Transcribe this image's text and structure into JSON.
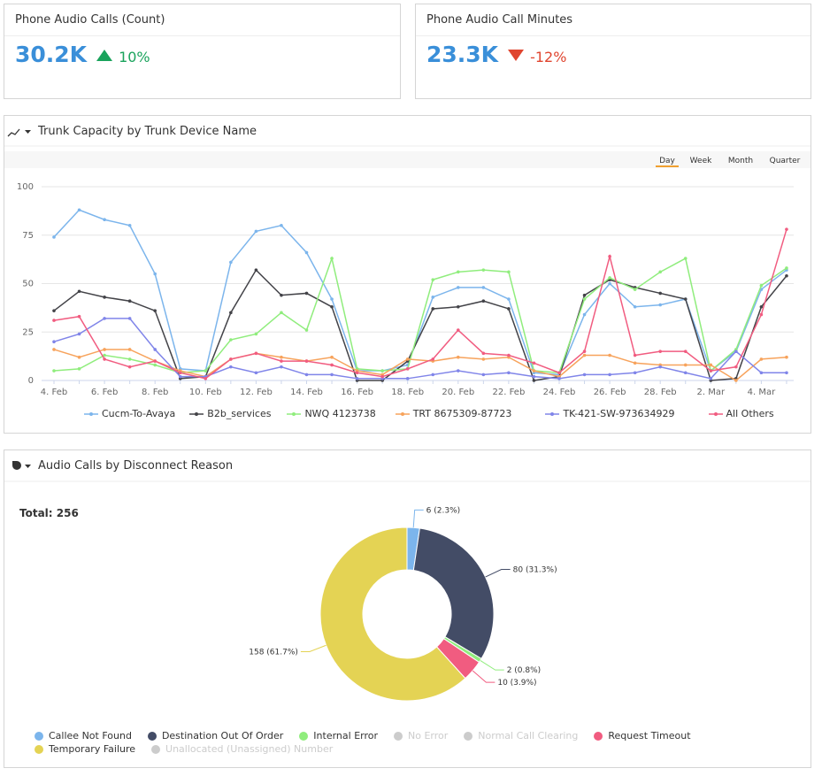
{
  "cards": [
    {
      "title": "Phone Audio Calls (Count)",
      "value": "30.2K",
      "change": "10%",
      "direction": "up",
      "color": "#1aa35c"
    },
    {
      "title": "Phone Audio Call Minutes",
      "value": "23.3K",
      "change": "-12%",
      "direction": "down",
      "color": "#e0452f"
    }
  ],
  "chart_data": [
    {
      "type": "line",
      "title": "Trunk Capacity by Trunk Device Name",
      "ranges": [
        "Day",
        "Week",
        "Month",
        "Quarter"
      ],
      "selected_range": 0,
      "categories": [
        "4. Feb",
        null,
        "6. Feb",
        null,
        "8. Feb",
        null,
        "10. Feb",
        null,
        "12. Feb",
        null,
        "14. Feb",
        null,
        "16. Feb",
        null,
        "18. Feb",
        null,
        "20. Feb",
        null,
        "22. Feb",
        null,
        "24. Feb",
        null,
        "26. Feb",
        null,
        "28. Feb",
        null,
        "2. Mar",
        null,
        "4. Mar",
        null
      ],
      "ylim": [
        0,
        100
      ],
      "yticks": [
        0,
        25,
        50,
        75,
        100
      ],
      "grid": true,
      "series": [
        {
          "name": "Cucm-To-Avaya",
          "color": "#7cb5ec",
          "values": [
            74,
            88,
            83,
            80,
            55,
            6,
            5,
            61,
            77,
            80,
            66,
            42,
            5,
            5,
            8,
            43,
            48,
            48,
            42,
            4,
            3,
            34,
            50,
            38,
            39,
            42,
            5,
            15,
            47,
            57
          ]
        },
        {
          "name": "B2b_services",
          "color": "#434348",
          "values": [
            36,
            46,
            43,
            41,
            36,
            1,
            2,
            35,
            57,
            44,
            45,
            38,
            0,
            0,
            10,
            37,
            38,
            41,
            37,
            0,
            2,
            44,
            52,
            48,
            45,
            42,
            0,
            1,
            38,
            54
          ]
        },
        {
          "name": "NWQ 4123738",
          "color": "#90ed7d",
          "values": [
            5,
            6,
            13,
            11,
            8,
            4,
            5,
            21,
            24,
            35,
            26,
            63,
            6,
            5,
            6,
            52,
            56,
            57,
            56,
            5,
            4,
            42,
            53,
            47,
            56,
            63,
            5,
            16,
            49,
            58
          ]
        },
        {
          "name": "TRT 8675309-87723",
          "color": "#f7a35c",
          "values": [
            16,
            12,
            16,
            16,
            10,
            5,
            2,
            11,
            14,
            12,
            10,
            12,
            5,
            3,
            11,
            10,
            12,
            11,
            12,
            5,
            2,
            13,
            13,
            9,
            8,
            8,
            8,
            0,
            11,
            12
          ]
        },
        {
          "name": "TK-421-SW-973634929",
          "color": "#8085e9",
          "values": [
            20,
            24,
            32,
            32,
            16,
            2,
            2,
            7,
            4,
            7,
            3,
            3,
            1,
            1,
            1,
            3,
            5,
            3,
            4,
            2,
            1,
            3,
            3,
            4,
            7,
            4,
            1,
            15,
            4,
            4
          ]
        },
        {
          "name": "All Others",
          "color": "#f15c80",
          "values": [
            31,
            33,
            11,
            7,
            10,
            4,
            1,
            11,
            14,
            10,
            10,
            8,
            4,
            2,
            6,
            11,
            26,
            14,
            13,
            9,
            4,
            15,
            64,
            13,
            15,
            15,
            5,
            7,
            34,
            78
          ]
        }
      ]
    },
    {
      "type": "pie",
      "title": "Audio Calls by Disconnect Reason",
      "subtitle": "Total: 256",
      "categories": [
        "Callee Not Found",
        "Destination Out Of Order",
        "Internal Error",
        "No Error",
        "Normal Call Clearing",
        "Request Timeout",
        "Temporary Failure",
        "Unallocated (Unassigned) Number"
      ],
      "values": [
        6,
        80,
        2,
        null,
        null,
        10,
        158,
        null
      ],
      "value_labels": [
        "6 (2.3%)",
        "80 (31.3%)",
        "2 (0.8%)",
        null,
        null,
        "10 (3.9%)",
        "158 (61.7%)",
        null
      ],
      "colors": [
        "#7cb5ec",
        "#434c66",
        "#90ed7d",
        "#cccccc",
        "#cccccc",
        "#f15c80",
        "#e4d354",
        "#cccccc"
      ]
    }
  ]
}
